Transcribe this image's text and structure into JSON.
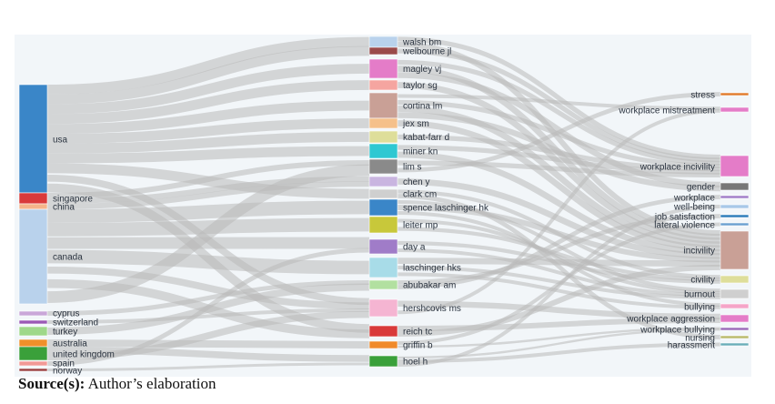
{
  "caption": {
    "bold": "Source(s):",
    "text": " Author’s elaboration"
  },
  "diagram": {
    "type": "sankey",
    "link_color": "#b9b9b9",
    "left_nodes": [
      {
        "id": "usa",
        "label": "usa",
        "color": "#3a86c8"
      },
      {
        "id": "singapore",
        "label": "singapore",
        "color": "#d93a3a"
      },
      {
        "id": "china",
        "label": "china",
        "color": "#f5b48a"
      },
      {
        "id": "canada",
        "label": "canada",
        "color": "#b9d2ec"
      },
      {
        "id": "cyprus",
        "label": "cyprus",
        "color": "#c9a7d8"
      },
      {
        "id": "switzerland",
        "label": "switzerland",
        "color": "#9b59b6"
      },
      {
        "id": "turkey",
        "label": "turkey",
        "color": "#9fd88a"
      },
      {
        "id": "australia",
        "label": "australia",
        "color": "#f0902a"
      },
      {
        "id": "united-kingdom",
        "label": "united kingdom",
        "color": "#3aa03a"
      },
      {
        "id": "spain",
        "label": "spain",
        "color": "#f29a96"
      },
      {
        "id": "norway",
        "label": "norway",
        "color": "#9a4040"
      }
    ],
    "middle_nodes": [
      {
        "id": "walsh",
        "label": "walsh bm",
        "color": "#b9d2ec"
      },
      {
        "id": "welbourne",
        "label": "welbourne jl",
        "color": "#9a4a4a"
      },
      {
        "id": "magley",
        "label": "magley vj",
        "color": "#e47cc8"
      },
      {
        "id": "taylor",
        "label": "taylor sg",
        "color": "#f5a5a0"
      },
      {
        "id": "cortina",
        "label": "cortina lm",
        "color": "#c9a096"
      },
      {
        "id": "jex",
        "label": "jex sm",
        "color": "#f5c08a"
      },
      {
        "id": "kabat",
        "label": "kabat-farr d",
        "color": "#dede9a"
      },
      {
        "id": "miner",
        "label": "miner kn",
        "color": "#2ec8d2"
      },
      {
        "id": "lim",
        "label": "lim s",
        "color": "#8a8a8a"
      },
      {
        "id": "cheny",
        "label": "chen y",
        "color": "#c9b5e0"
      },
      {
        "id": "clark",
        "label": "clark cm",
        "color": "#cfcfcf"
      },
      {
        "id": "spence",
        "label": "spence laschinger hk",
        "color": "#3a86c8"
      },
      {
        "id": "leiter",
        "label": "leiter mp",
        "color": "#c8c83a"
      },
      {
        "id": "day",
        "label": "day a",
        "color": "#a07cc8"
      },
      {
        "id": "laschinger",
        "label": "laschinger hks",
        "color": "#a8dce8"
      },
      {
        "id": "abubakar",
        "label": "abubakar am",
        "color": "#b2e0a0"
      },
      {
        "id": "hershcovis",
        "label": "hershcovis ms",
        "color": "#f5b5d2"
      },
      {
        "id": "reich",
        "label": "reich tc",
        "color": "#d93a3a"
      },
      {
        "id": "griffin",
        "label": "griffin b",
        "color": "#f08a2a"
      },
      {
        "id": "hoel",
        "label": "hoel h",
        "color": "#3aa03a"
      }
    ],
    "right_nodes": [
      {
        "id": "stress",
        "label": "stress",
        "color": "#e07a2a"
      },
      {
        "id": "mistreat",
        "label": "workplace mistreatment",
        "color": "#e47cc8"
      },
      {
        "id": "wincivility",
        "label": "workplace incivility",
        "color": "#e47cc8"
      },
      {
        "id": "gender",
        "label": "gender",
        "color": "#777777"
      },
      {
        "id": "workplace",
        "label": "workplace",
        "color": "#a07cc8"
      },
      {
        "id": "wellbeing",
        "label": "well-being",
        "color": "#a8c8e8"
      },
      {
        "id": "jobsat",
        "label": "job satisfaction",
        "color": "#2a7ab8"
      },
      {
        "id": "lateral",
        "label": "lateral violence",
        "color": "#6aa0d0"
      },
      {
        "id": "incivility",
        "label": "incivility",
        "color": "#c9a096"
      },
      {
        "id": "civility",
        "label": "civility",
        "color": "#dede9a"
      },
      {
        "id": "burnout",
        "label": "burnout",
        "color": "#cfcfcf"
      },
      {
        "id": "bullying",
        "label": "bullying",
        "color": "#f5a5c8"
      },
      {
        "id": "waggression",
        "label": "workplace aggression",
        "color": "#e47cc8"
      },
      {
        "id": "wbullying",
        "label": "workplace bullying",
        "color": "#9a6ab8"
      },
      {
        "id": "nursing",
        "label": "nursing",
        "color": "#b9b96a"
      },
      {
        "id": "harassment",
        "label": "harassment",
        "color": "#6aaeb8"
      }
    ],
    "links": [
      {
        "source": "usa",
        "target": "walsh"
      },
      {
        "source": "usa",
        "target": "welbourne"
      },
      {
        "source": "usa",
        "target": "magley"
      },
      {
        "source": "usa",
        "target": "taylor"
      },
      {
        "source": "usa",
        "target": "cortina"
      },
      {
        "source": "usa",
        "target": "jex"
      },
      {
        "source": "usa",
        "target": "kabat"
      },
      {
        "source": "usa",
        "target": "miner"
      },
      {
        "source": "usa",
        "target": "clark"
      },
      {
        "source": "usa",
        "target": "hershcovis"
      },
      {
        "source": "usa",
        "target": "reich"
      },
      {
        "source": "singapore",
        "target": "lim"
      },
      {
        "source": "singapore",
        "target": "cheny"
      },
      {
        "source": "china",
        "target": "cheny"
      },
      {
        "source": "canada",
        "target": "spence"
      },
      {
        "source": "canada",
        "target": "leiter"
      },
      {
        "source": "canada",
        "target": "day"
      },
      {
        "source": "canada",
        "target": "laschinger"
      },
      {
        "source": "canada",
        "target": "hershcovis"
      },
      {
        "source": "canada",
        "target": "reich"
      },
      {
        "source": "canada",
        "target": "lim"
      },
      {
        "source": "cyprus",
        "target": "abubakar"
      },
      {
        "source": "switzerland",
        "target": "hershcovis"
      },
      {
        "source": "turkey",
        "target": "abubakar"
      },
      {
        "source": "australia",
        "target": "griffin"
      },
      {
        "source": "united-kingdom",
        "target": "hoel"
      },
      {
        "source": "united-kingdom",
        "target": "hershcovis"
      },
      {
        "source": "spain",
        "target": "day"
      },
      {
        "source": "norway",
        "target": "hoel"
      },
      {
        "source": "walsh",
        "target": "wincivility"
      },
      {
        "source": "walsh",
        "target": "incivility"
      },
      {
        "source": "welbourne",
        "target": "wincivility"
      },
      {
        "source": "magley",
        "target": "wincivility"
      },
      {
        "source": "magley",
        "target": "incivility"
      },
      {
        "source": "magley",
        "target": "gender"
      },
      {
        "source": "taylor",
        "target": "incivility"
      },
      {
        "source": "cortina",
        "target": "mistreat"
      },
      {
        "source": "cortina",
        "target": "wincivility"
      },
      {
        "source": "cortina",
        "target": "incivility"
      },
      {
        "source": "cortina",
        "target": "gender"
      },
      {
        "source": "jex",
        "target": "incivility"
      },
      {
        "source": "kabat",
        "target": "wincivility"
      },
      {
        "source": "miner",
        "target": "wincivility"
      },
      {
        "source": "miner",
        "target": "incivility"
      },
      {
        "source": "lim",
        "target": "wincivility"
      },
      {
        "source": "lim",
        "target": "stress"
      },
      {
        "source": "cheny",
        "target": "incivility"
      },
      {
        "source": "clark",
        "target": "civility"
      },
      {
        "source": "clark",
        "target": "nursing"
      },
      {
        "source": "spence",
        "target": "burnout"
      },
      {
        "source": "spence",
        "target": "incivility"
      },
      {
        "source": "spence",
        "target": "bullying"
      },
      {
        "source": "leiter",
        "target": "burnout"
      },
      {
        "source": "leiter",
        "target": "civility"
      },
      {
        "source": "day",
        "target": "civility"
      },
      {
        "source": "day",
        "target": "burnout"
      },
      {
        "source": "laschinger",
        "target": "incivility"
      },
      {
        "source": "laschinger",
        "target": "burnout"
      },
      {
        "source": "laschinger",
        "target": "bullying"
      },
      {
        "source": "abubakar",
        "target": "jobsat"
      },
      {
        "source": "abubakar",
        "target": "workplace"
      },
      {
        "source": "hershcovis",
        "target": "waggression"
      },
      {
        "source": "hershcovis",
        "target": "mistreat"
      },
      {
        "source": "reich",
        "target": "waggression"
      },
      {
        "source": "reich",
        "target": "incivility"
      },
      {
        "source": "griffin",
        "target": "lateral"
      },
      {
        "source": "griffin",
        "target": "wbullying"
      },
      {
        "source": "hoel",
        "target": "wbullying"
      },
      {
        "source": "hoel",
        "target": "harassment"
      },
      {
        "source": "hoel",
        "target": "wellbeing"
      }
    ]
  }
}
